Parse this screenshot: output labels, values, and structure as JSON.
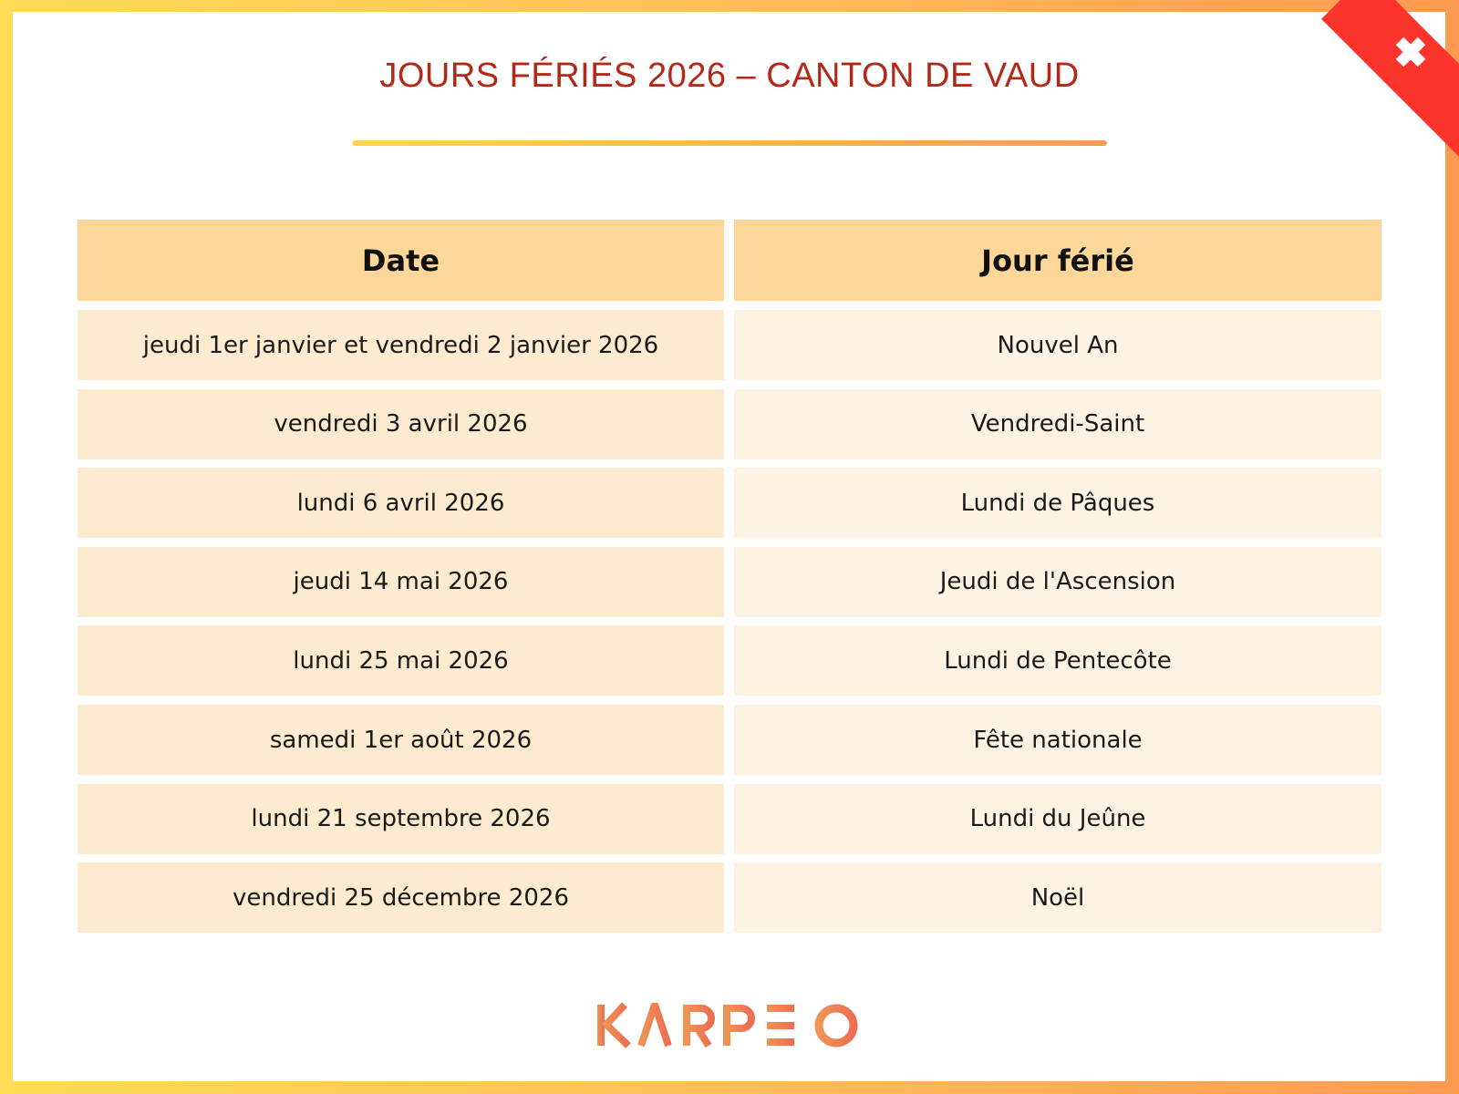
{
  "title": "JOURS FÉRIÉS 2026 – CANTON DE VAUD",
  "table": {
    "headers": [
      "Date",
      "Jour férié"
    ],
    "rows": [
      [
        "jeudi 1er janvier et vendredi 2 janvier 2026",
        "Nouvel An"
      ],
      [
        "vendredi 3 avril 2026",
        "Vendredi-Saint"
      ],
      [
        "lundi 6 avril 2026",
        "Lundi de Pâques"
      ],
      [
        "jeudi 14 mai 2026",
        "Jeudi de l'Ascension"
      ],
      [
        "lundi 25 mai 2026",
        "Lundi de Pentecôte"
      ],
      [
        "samedi 1er août 2026",
        "Fête nationale"
      ],
      [
        "lundi 21 septembre 2026",
        "Lundi du Jeûne"
      ],
      [
        "vendredi 25 décembre 2026",
        "Noël"
      ]
    ]
  },
  "logo": "KARPEO",
  "colors": {
    "title": "#b22a17",
    "header": "#fdd699",
    "row_left": "#fdebd0",
    "row_right": "#fef3e2",
    "ribbon": "#fc342b",
    "logo": "#ee7d52"
  },
  "icons": {
    "corner": "swiss-cross-icon"
  }
}
